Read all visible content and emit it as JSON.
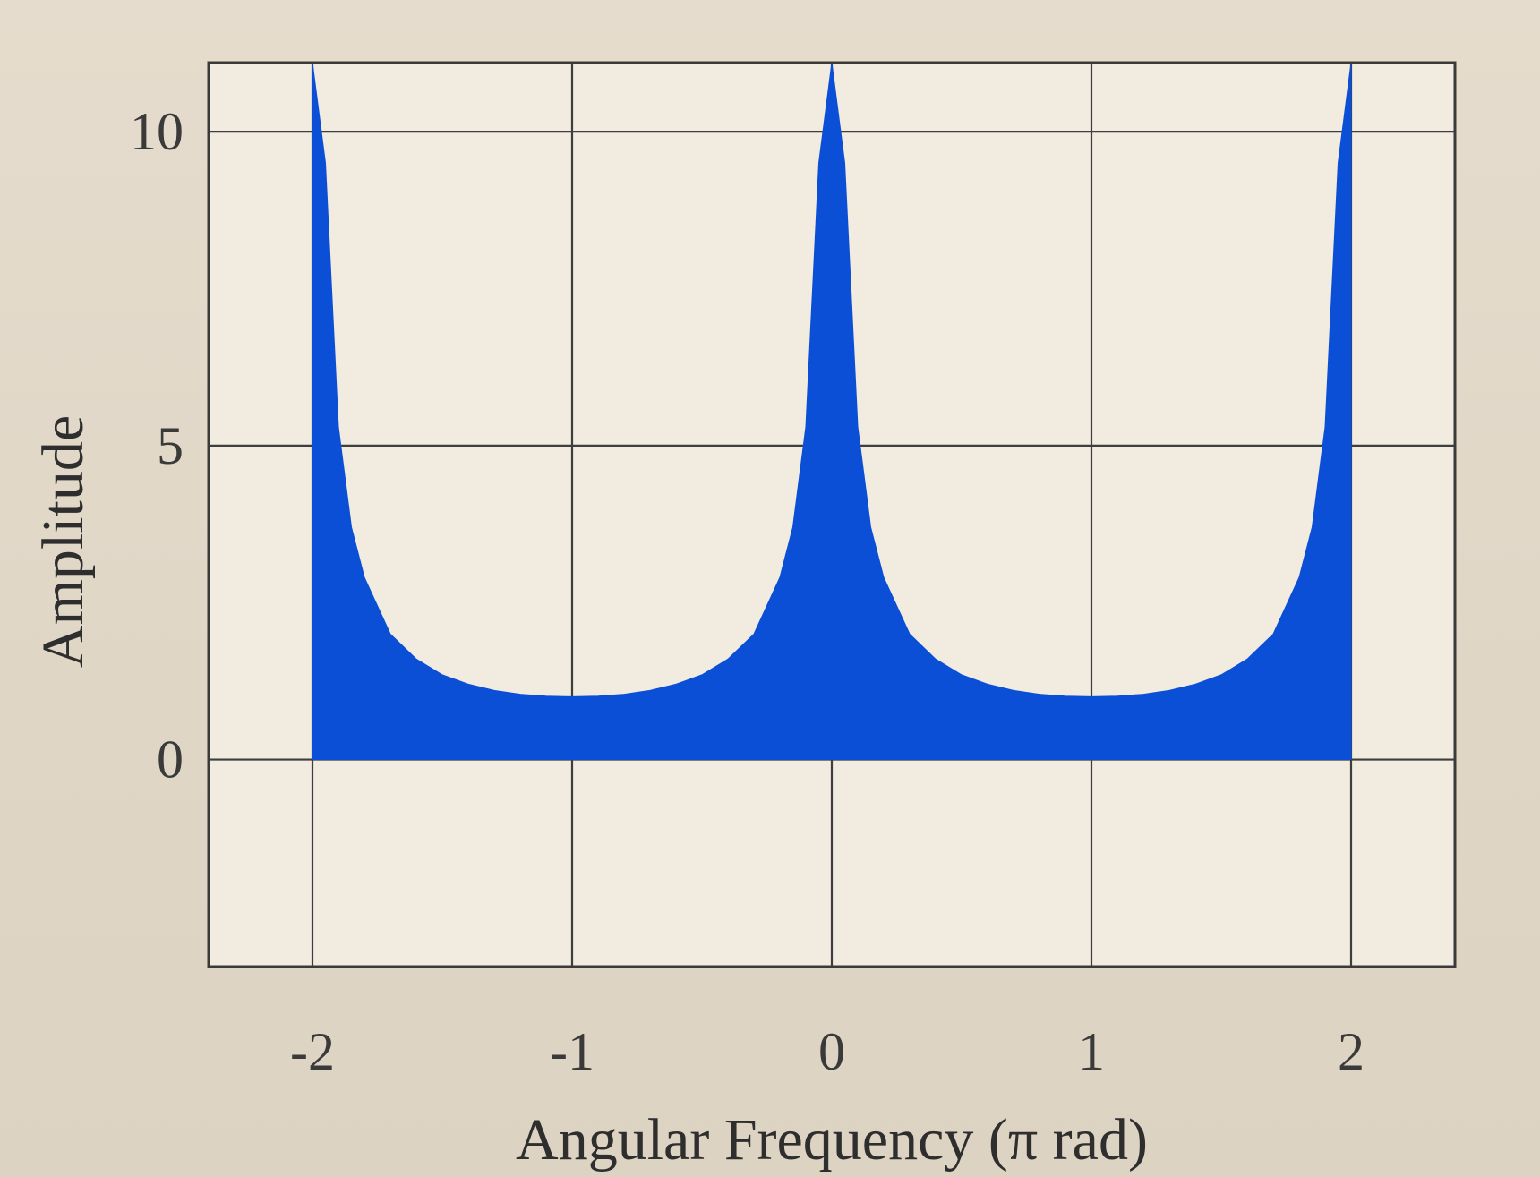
{
  "chart_data": {
    "type": "area",
    "xlabel": "Angular Frequency (π rad)",
    "ylabel": "Amplitude",
    "xlim": [
      -2.4,
      2.4
    ],
    "ylim": [
      -3.3,
      11.1
    ],
    "x_ticks": [
      -2,
      -1,
      0,
      1,
      2
    ],
    "x_tick_labels": [
      "-2",
      "-1",
      "0",
      "1",
      "2"
    ],
    "y_ticks": [
      0,
      5,
      10
    ],
    "y_tick_labels": [
      "0",
      "5",
      "10"
    ],
    "grid": true,
    "fill_color": "#0a4fd6",
    "series": [
      {
        "x": [
          -2.0,
          -1.95,
          -1.9,
          -1.85,
          -1.8,
          -1.7,
          -1.6,
          -1.5,
          -1.4,
          -1.3,
          -1.2,
          -1.1,
          -1.0,
          -0.9,
          -0.8,
          -0.7,
          -0.6,
          -0.5,
          -0.4,
          -0.3,
          -0.2,
          -0.15,
          -0.1,
          -0.05,
          0.0,
          0.05,
          0.1,
          0.15,
          0.2,
          0.3,
          0.4,
          0.5,
          0.6,
          0.7,
          0.8,
          0.9,
          1.0,
          1.1,
          1.2,
          1.3,
          1.4,
          1.5,
          1.6,
          1.7,
          1.8,
          1.85,
          1.9,
          1.95,
          2.0
        ],
        "values": [
          11.1,
          9.5,
          5.3,
          3.7,
          2.9,
          2.0,
          1.6,
          1.35,
          1.2,
          1.1,
          1.04,
          1.01,
          1.0,
          1.01,
          1.04,
          1.1,
          1.2,
          1.35,
          1.6,
          2.0,
          2.9,
          3.7,
          5.3,
          9.5,
          11.1,
          9.5,
          5.3,
          3.7,
          2.9,
          2.0,
          1.6,
          1.35,
          1.2,
          1.1,
          1.04,
          1.01,
          1.0,
          1.01,
          1.04,
          1.1,
          1.2,
          1.35,
          1.6,
          2.0,
          2.9,
          3.7,
          5.3,
          9.5,
          11.1
        ]
      }
    ]
  }
}
